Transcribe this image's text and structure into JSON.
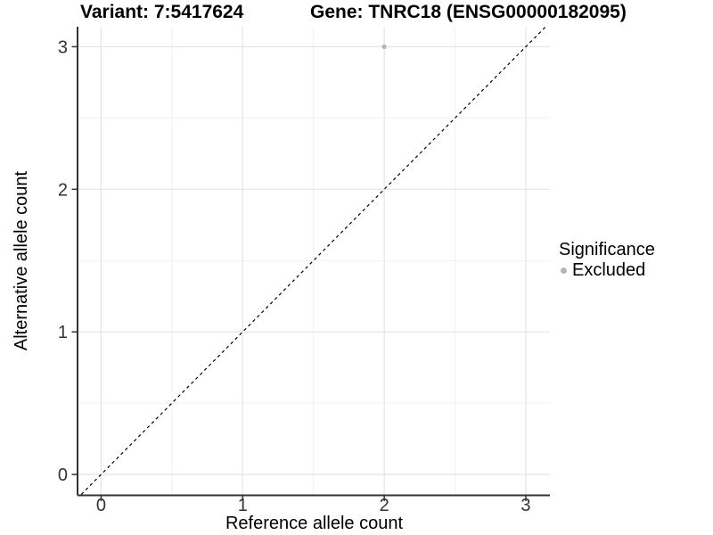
{
  "chart_data": {
    "type": "scatter",
    "title_variant": "Variant: 7:5417624",
    "title_gene": "Gene: TNRC18 (ENSG00000182095)",
    "xlabel": "Reference allele count",
    "ylabel": "Alternative allele count",
    "xlim": [
      -0.16,
      3.17
    ],
    "ylim": [
      -0.14,
      3.14
    ],
    "x_major_ticks": [
      0,
      1,
      2,
      3
    ],
    "y_major_ticks": [
      0,
      1,
      2,
      3
    ],
    "x_minor_ticks": [
      0.5,
      1.5,
      2.5
    ],
    "y_minor_ticks": [
      0.5,
      1.5,
      2.5
    ],
    "grid": "major and minor, light gray on white panel",
    "reference_line": {
      "kind": "identity y = x",
      "style": "dashed",
      "color": "#000000"
    },
    "series": [
      {
        "name": "Excluded",
        "color": "#b5b5b5",
        "points": [
          {
            "x": 2,
            "y": 3
          }
        ]
      }
    ],
    "legend": {
      "title": "Significance",
      "position": "right",
      "entries": [
        {
          "label": "Excluded",
          "color": "#b5b5b5",
          "marker": "circle"
        }
      ]
    }
  },
  "colors": {
    "background": "#ffffff",
    "grid_major": "#e4e4e4",
    "grid_minor": "#f0f0f0",
    "axis_line": "#333333",
    "tick_mark": "#333333",
    "tick_label": "#333333",
    "text": "#000000",
    "point": "#b5b5b5"
  }
}
